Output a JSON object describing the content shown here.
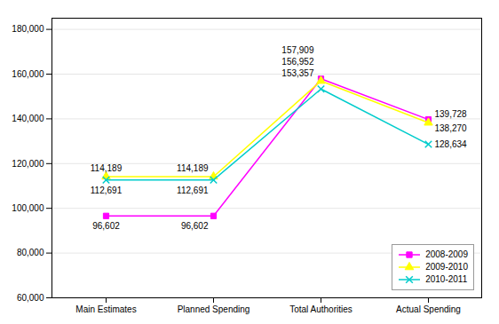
{
  "chart_data": {
    "type": "line",
    "categories": [
      "Main Estimates",
      "Planned Spending",
      "Total Authorities",
      "Actual Spending"
    ],
    "series": [
      {
        "name": "2008-2009",
        "color": "#ff00ff",
        "marker": "square",
        "values": [
          96602,
          96602,
          157909,
          139728
        ],
        "value_labels": [
          "96,602",
          "96,602",
          "157,909",
          "139,728"
        ]
      },
      {
        "name": "2009-2010",
        "color": "#ffff00",
        "marker": "triangle",
        "values": [
          114189,
          114189,
          156952,
          138270
        ],
        "value_labels": [
          "114,189",
          "114,189",
          "156,952",
          "138,270"
        ]
      },
      {
        "name": "2010-2011",
        "color": "#00cccc",
        "marker": "x",
        "values": [
          112691,
          112691,
          153357,
          128634
        ],
        "value_labels": [
          "112,691",
          "112,691",
          "153,357",
          "128,634"
        ]
      }
    ],
    "ylim": [
      60000,
      185000
    ],
    "yticks": [
      {
        "value": 60000,
        "label": "60,000"
      },
      {
        "value": 80000,
        "label": "80,000"
      },
      {
        "value": 100000,
        "label": "100,000"
      },
      {
        "value": 120000,
        "label": "120,000"
      },
      {
        "value": 140000,
        "label": "140,000"
      },
      {
        "value": 160000,
        "label": "160,000"
      },
      {
        "value": 180000,
        "label": "180,000"
      }
    ],
    "grid": true,
    "legend": "lower right",
    "data_labels": true
  }
}
